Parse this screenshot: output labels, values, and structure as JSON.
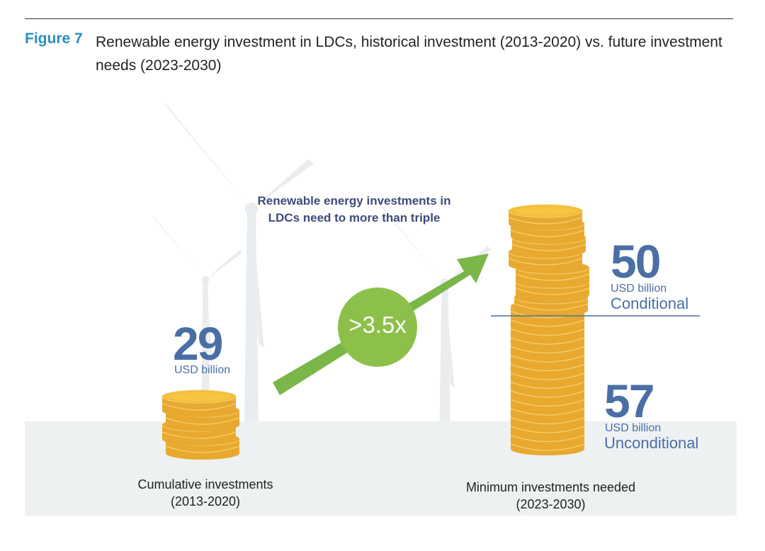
{
  "figure": {
    "label": "Figure 7",
    "title": "Renewable energy investment in LDCs, historical investment (2013-2020) vs. future investment needs (2023-2030)"
  },
  "callout": "Renewable energy investments in LDCs need to more than triple",
  "multiplier": ">3.5x",
  "colors": {
    "coin": "#e8a931",
    "coin_top": "#f4bd3a",
    "accent_blue": "#4a6fa5",
    "arrow_green": "#7ab648",
    "title_teal": "#2a8fbf",
    "ground": "#eef1f2",
    "turbine": "#e9edef"
  },
  "chart_data": {
    "type": "bar",
    "title": "Renewable energy investment in LDCs",
    "categories": [
      "Cumulative investments (2013-2020)",
      "Minimum investments needed (2023-2030)"
    ],
    "series": [
      {
        "name": "Historical",
        "values": [
          29,
          null
        ]
      },
      {
        "name": "Unconditional",
        "values": [
          null,
          57
        ]
      },
      {
        "name": "Conditional",
        "values": [
          null,
          50
        ]
      }
    ],
    "unit": "USD billion",
    "bars": [
      {
        "value": "29",
        "unit": "USD billion",
        "label_line1": "Cumulative investments",
        "label_line2": "(2013-2020)"
      },
      {
        "label_line1": "Minimum investments needed",
        "label_line2": "(2023-2030)",
        "segments": [
          {
            "value": "57",
            "unit": "USD billion",
            "kind": "Unconditional"
          },
          {
            "value": "50",
            "unit": "USD billion",
            "kind": "Conditional"
          }
        ]
      }
    ]
  }
}
